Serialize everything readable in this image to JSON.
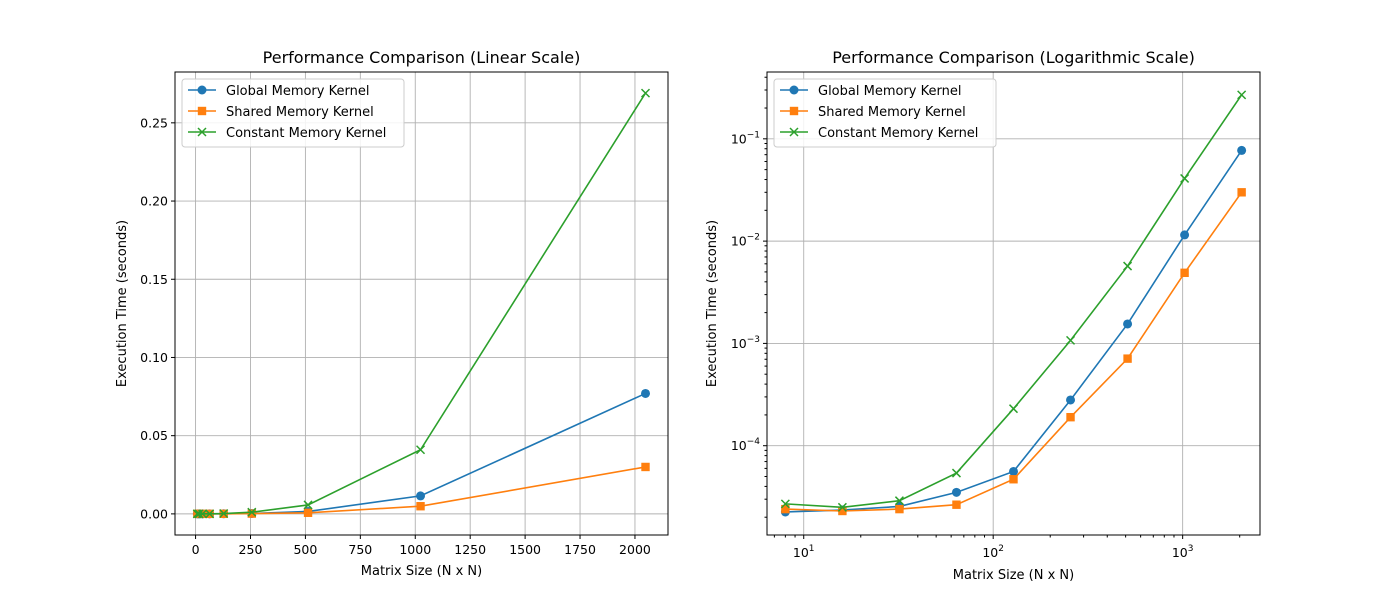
{
  "chart_data": [
    {
      "type": "line",
      "title": "Performance Comparison (Linear Scale)",
      "xlabel": "Matrix Size (N x N)",
      "ylabel": "Execution Time (seconds)",
      "xscale": "linear",
      "yscale": "linear",
      "xlim": [
        -93.6,
        2150.4
      ],
      "ylim": [
        -0.0135,
        0.2825
      ],
      "xticks": [
        0,
        250,
        500,
        750,
        1000,
        1250,
        1500,
        1750,
        2000
      ],
      "xtick_labels": [
        "0",
        "250",
        "500",
        "750",
        "1000",
        "1250",
        "1500",
        "1750",
        "2000"
      ],
      "yticks": [
        0.0,
        0.05,
        0.1,
        0.15,
        0.2,
        0.25
      ],
      "ytick_labels": [
        "0.00",
        "0.05",
        "0.10",
        "0.15",
        "0.20",
        "0.25"
      ],
      "grid": true,
      "legend": "top-left",
      "x": [
        8,
        16,
        32,
        64,
        128,
        256,
        512,
        1024,
        2048
      ],
      "series": [
        {
          "name": "Global Memory Kernel",
          "color": "#1f77b4",
          "marker": "circle",
          "values": [
            2.25e-05,
            2.35e-05,
            2.55e-05,
            3.5e-05,
            5.6e-05,
            0.00028,
            0.00155,
            0.0115,
            0.077
          ]
        },
        {
          "name": "Shared Memory Kernel",
          "color": "#ff7f0e",
          "marker": "square",
          "values": [
            2.4e-05,
            2.3e-05,
            2.4e-05,
            2.65e-05,
            4.7e-05,
            0.00019,
            0.00071,
            0.0049,
            0.03
          ]
        },
        {
          "name": "Constant Memory Kernel",
          "color": "#2ca02c",
          "marker": "x",
          "values": [
            2.7e-05,
            2.5e-05,
            2.9e-05,
            5.4e-05,
            0.00023,
            0.00107,
            0.0057,
            0.041,
            0.269
          ]
        }
      ]
    },
    {
      "type": "line",
      "title": "Performance Comparison (Logarithmic Scale)",
      "xlabel": "Matrix Size (N x N)",
      "ylabel": "Execution Time (seconds)",
      "xscale": "log",
      "yscale": "log",
      "xlim": [
        6.4,
        2560
      ],
      "ylim": [
        1.34e-05,
        0.45
      ],
      "xticks": [
        10,
        100,
        1000
      ],
      "xtick_labels": [
        [
          "10",
          "1"
        ],
        [
          "10",
          "2"
        ],
        [
          "10",
          "3"
        ]
      ],
      "yticks": [
        0.0001,
        0.001,
        0.01,
        0.1
      ],
      "ytick_labels": [
        [
          "10",
          "−4"
        ],
        [
          "10",
          "−3"
        ],
        [
          "10",
          "−2"
        ],
        [
          "10",
          "−1"
        ]
      ],
      "grid": true,
      "legend": "top-left",
      "x": [
        8,
        16,
        32,
        64,
        128,
        256,
        512,
        1024,
        2048
      ],
      "series": [
        {
          "name": "Global Memory Kernel",
          "color": "#1f77b4",
          "marker": "circle",
          "values": [
            2.25e-05,
            2.35e-05,
            2.55e-05,
            3.5e-05,
            5.6e-05,
            0.00028,
            0.00155,
            0.0115,
            0.077
          ]
        },
        {
          "name": "Shared Memory Kernel",
          "color": "#ff7f0e",
          "marker": "square",
          "values": [
            2.4e-05,
            2.3e-05,
            2.4e-05,
            2.65e-05,
            4.7e-05,
            0.00019,
            0.00071,
            0.0049,
            0.03
          ]
        },
        {
          "name": "Constant Memory Kernel",
          "color": "#2ca02c",
          "marker": "x",
          "values": [
            2.7e-05,
            2.5e-05,
            2.9e-05,
            5.4e-05,
            0.00023,
            0.00107,
            0.0057,
            0.041,
            0.269
          ]
        }
      ]
    }
  ]
}
